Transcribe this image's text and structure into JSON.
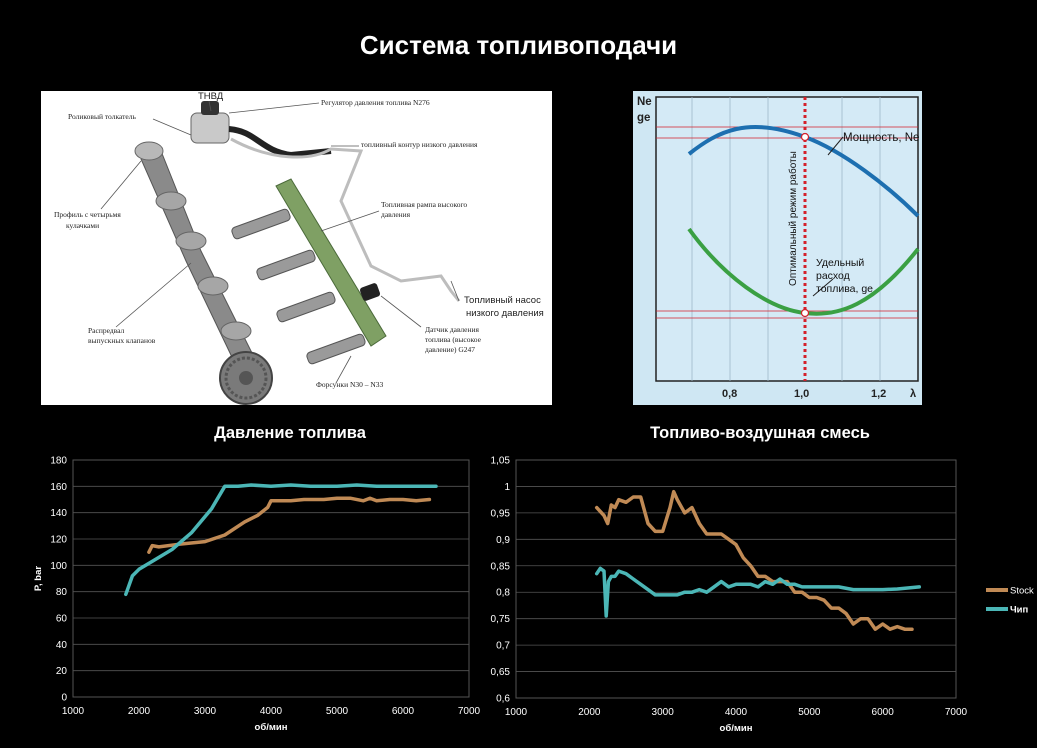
{
  "title": "Система топливоподачи",
  "diagram": {
    "labels": {
      "tnvd": "ТНВД",
      "regulator": "Регулятор давления топлива N276",
      "roller": "Роликовый толкатель",
      "low_circuit": "топливный контур низкого давления",
      "profile_line1": "Профиль с четырьмя",
      "profile_line2": "кулачками",
      "rail_line1": "Топливная рампа высокого",
      "rail_line2": "давления",
      "pump_line1": "Топливный насос",
      "pump_line2": "низкого давления",
      "camshaft_line1": "Распредвал",
      "camshaft_line2": "выпускных клапанов",
      "sensor_line1": "Датчик давления",
      "sensor_line2": "топлива (высокое",
      "sensor_line3": "давление) G247",
      "injectors": "Форсунки N30 – N33"
    }
  },
  "lambda_graph": {
    "y_label_top": "Ne",
    "y_label_bottom": "ge",
    "x_ticks": [
      "0,8",
      "1,0",
      "1,2"
    ],
    "x_label": "λ",
    "vertical_label": "Оптимальный режим работы",
    "power_label": "Мощность, Ne",
    "consumption_line1": "Удельный",
    "consumption_line2": "расход",
    "consumption_line3": "топлива, ge",
    "colors": {
      "power": "#1d6fb0",
      "consumption": "#3aa043",
      "optimum": "#d4202a",
      "background": "#cfe7f3"
    }
  },
  "chart_data": [
    {
      "type": "line",
      "title": "Давление топлива",
      "xlabel": "об/мин",
      "ylabel": "P, bar",
      "xlim": [
        1000,
        7000
      ],
      "ylim": [
        0,
        180
      ],
      "x_ticks": [
        "1000",
        "2000",
        "3000",
        "4000",
        "5000",
        "6000",
        "7000"
      ],
      "y_ticks": [
        "0",
        "20",
        "40",
        "60",
        "80",
        "100",
        "120",
        "140",
        "160",
        "180"
      ],
      "series": [
        {
          "name": "Stock",
          "color": "#c08a55",
          "x": [
            2150,
            2200,
            2300,
            2600,
            3000,
            3300,
            3600,
            3800,
            3950,
            4000,
            4100,
            4300,
            4500,
            4800,
            5000,
            5200,
            5400,
            5500,
            5600,
            5800,
            6000,
            6200,
            6400
          ],
          "y": [
            110,
            115,
            114,
            116,
            118,
            123,
            133,
            138,
            144,
            149,
            149,
            149,
            150,
            150,
            151,
            151,
            149,
            151,
            149,
            150,
            150,
            149,
            150
          ]
        },
        {
          "name": "Чип",
          "color": "#4bb6b6",
          "x": [
            1800,
            1900,
            2000,
            2200,
            2500,
            2800,
            3100,
            3300,
            3500,
            3700,
            4000,
            4300,
            4600,
            5000,
            5300,
            5600,
            5900,
            6200,
            6500
          ],
          "y": [
            78,
            92,
            97,
            103,
            112,
            125,
            143,
            160,
            160,
            161,
            160,
            161,
            160,
            160,
            161,
            160,
            160,
            160,
            160
          ]
        }
      ]
    },
    {
      "type": "line",
      "title": "Топливо-воздушная смесь",
      "xlabel": "об/мин",
      "ylabel": "",
      "xlim": [
        1000,
        7000
      ],
      "ylim": [
        0.6,
        1.05
      ],
      "x_ticks": [
        "1000",
        "2000",
        "3000",
        "4000",
        "5000",
        "6000",
        "7000"
      ],
      "y_ticks": [
        "0,6",
        "0,65",
        "0,7",
        "0,75",
        "0,8",
        "0,85",
        "0,9",
        "0,95",
        "1",
        "1,05"
      ],
      "series": [
        {
          "name": "Stock",
          "color": "#c08a55",
          "x": [
            2100,
            2200,
            2250,
            2300,
            2350,
            2400,
            2500,
            2600,
            2700,
            2800,
            2900,
            3000,
            3100,
            3150,
            3200,
            3300,
            3400,
            3500,
            3600,
            3700,
            3800,
            3900,
            4000,
            4100,
            4200,
            4300,
            4400,
            4500,
            4600,
            4700,
            4800,
            4900,
            5000,
            5100,
            5200,
            5300,
            5400,
            5500,
            5600,
            5700,
            5800,
            5900,
            6000,
            6100,
            6200,
            6300,
            6400
          ],
          "y": [
            0.96,
            0.945,
            0.93,
            0.965,
            0.96,
            0.975,
            0.97,
            0.98,
            0.98,
            0.93,
            0.915,
            0.915,
            0.96,
            0.99,
            0.975,
            0.95,
            0.96,
            0.93,
            0.91,
            0.91,
            0.91,
            0.9,
            0.89,
            0.865,
            0.85,
            0.83,
            0.83,
            0.82,
            0.82,
            0.82,
            0.8,
            0.8,
            0.79,
            0.79,
            0.785,
            0.77,
            0.77,
            0.76,
            0.74,
            0.75,
            0.75,
            0.73,
            0.74,
            0.73,
            0.735,
            0.73,
            0.73
          ]
        },
        {
          "name": "Чип",
          "color": "#4bb6b6",
          "x": [
            2100,
            2150,
            2200,
            2230,
            2260,
            2300,
            2350,
            2400,
            2500,
            2600,
            2700,
            2800,
            2900,
            3000,
            3100,
            3200,
            3300,
            3400,
            3500,
            3600,
            3700,
            3800,
            3900,
            4000,
            4100,
            4200,
            4300,
            4400,
            4500,
            4600,
            4700,
            4800,
            4900,
            5000,
            5200,
            5400,
            5600,
            5800,
            6000,
            6200,
            6500
          ],
          "y": [
            0.835,
            0.845,
            0.84,
            0.755,
            0.82,
            0.83,
            0.83,
            0.84,
            0.835,
            0.825,
            0.815,
            0.805,
            0.795,
            0.795,
            0.795,
            0.795,
            0.8,
            0.8,
            0.805,
            0.8,
            0.81,
            0.82,
            0.81,
            0.815,
            0.815,
            0.815,
            0.81,
            0.82,
            0.815,
            0.825,
            0.815,
            0.815,
            0.81,
            0.81,
            0.81,
            0.81,
            0.805,
            0.805,
            0.805,
            0.806,
            0.81
          ]
        }
      ],
      "legend_position": "right"
    }
  ]
}
